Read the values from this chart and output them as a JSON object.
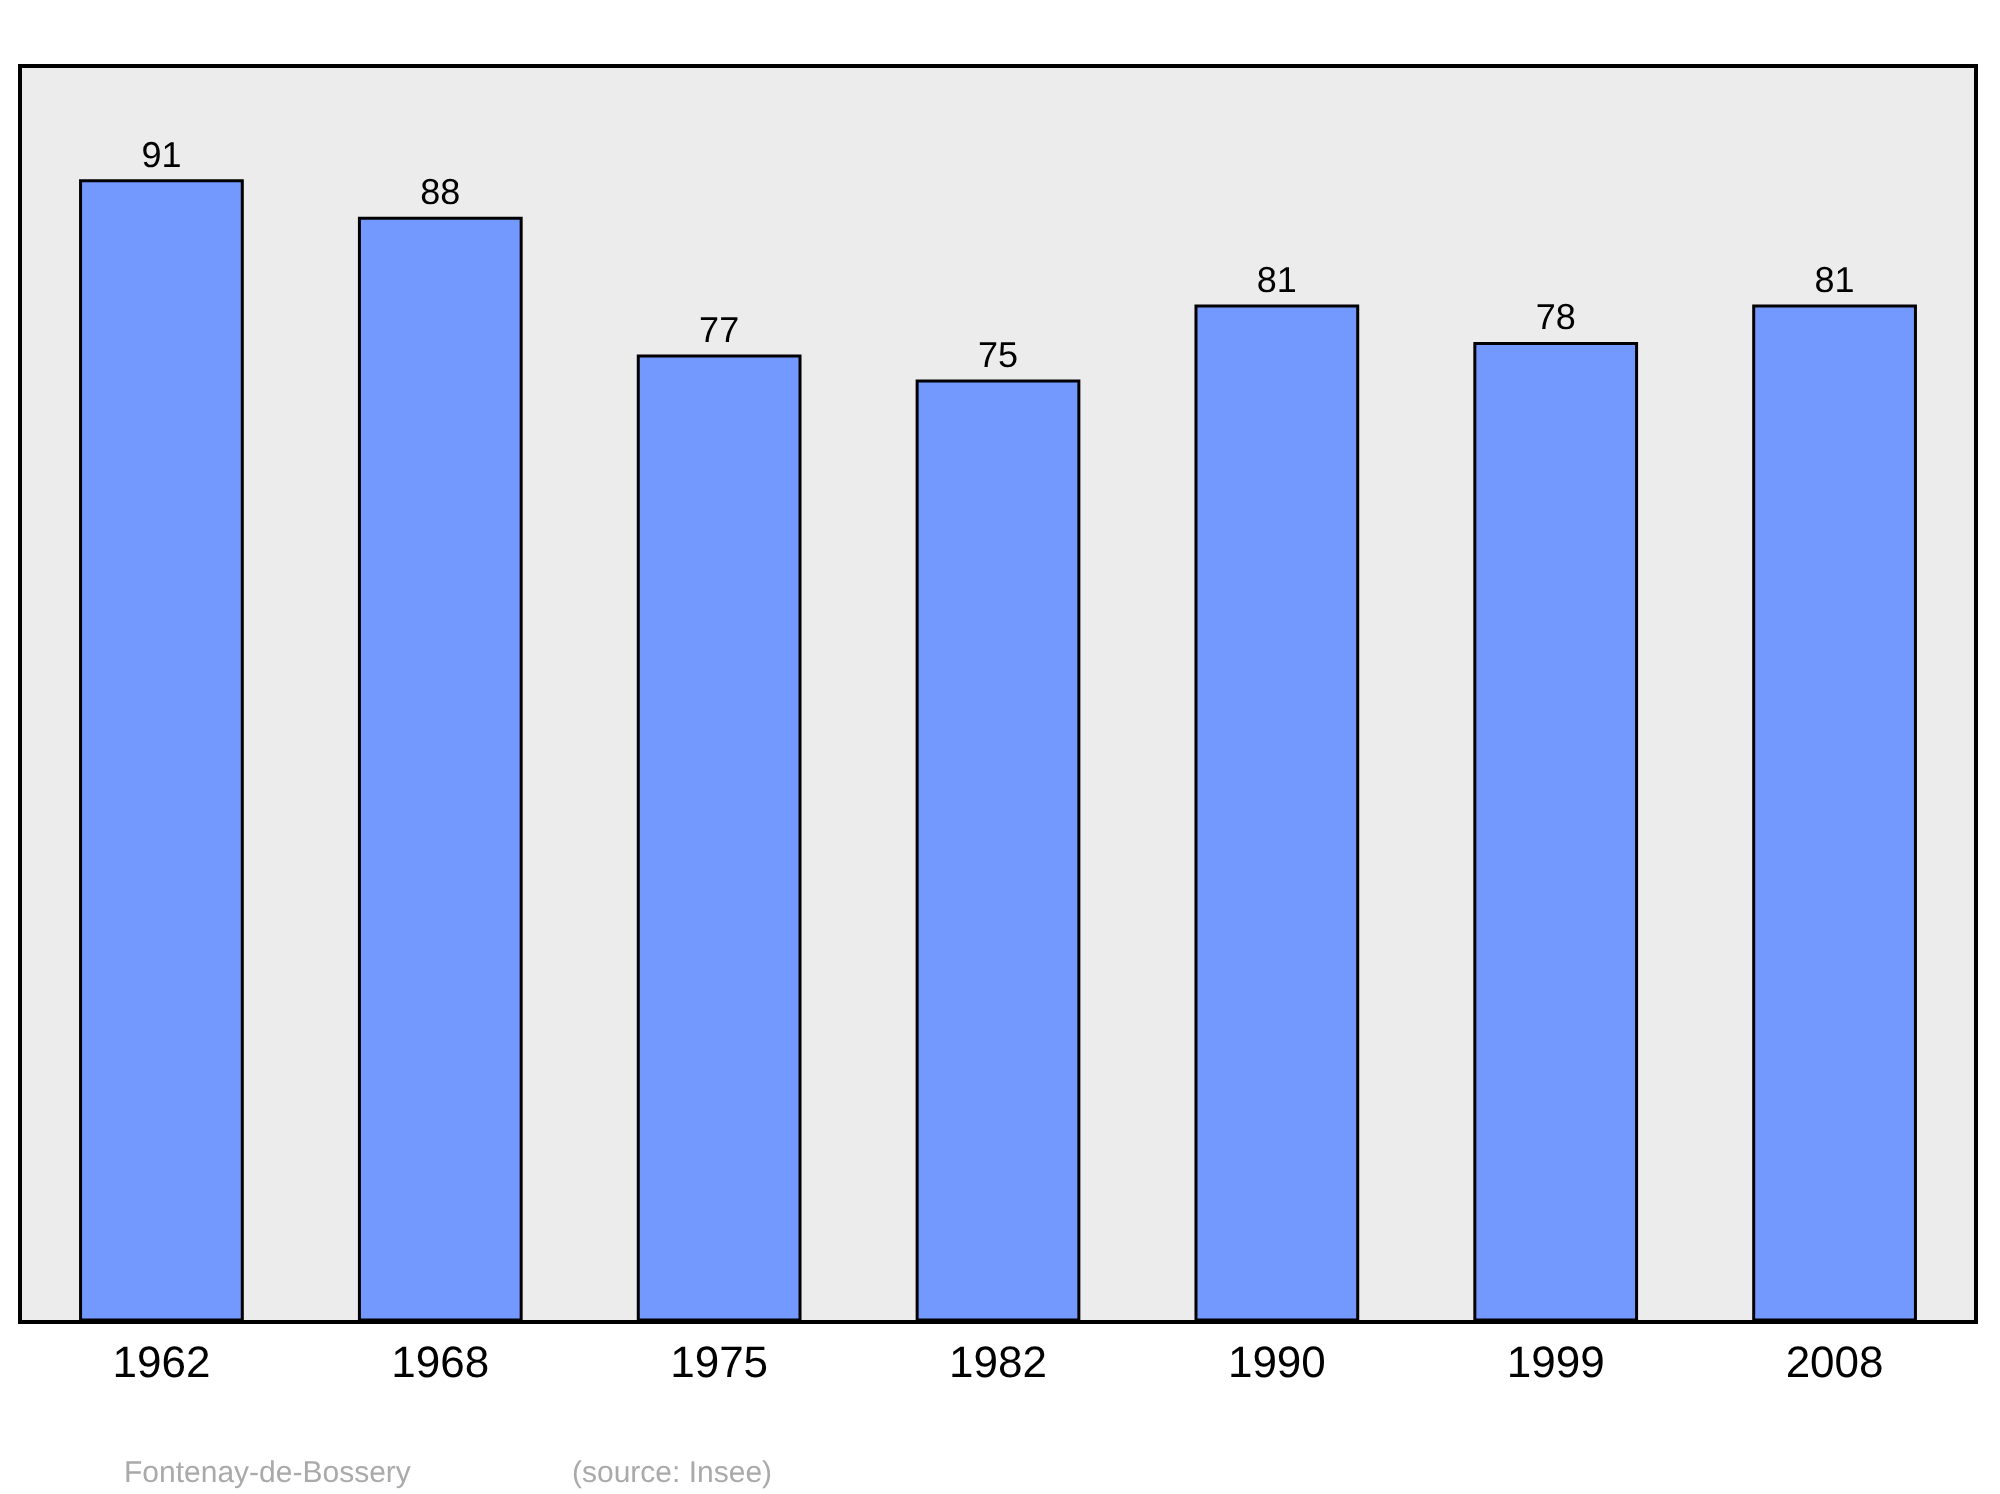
{
  "chart_data": {
    "type": "bar",
    "categories": [
      "1962",
      "1968",
      "1975",
      "1982",
      "1990",
      "1999",
      "2008"
    ],
    "values": [
      91,
      88,
      77,
      75,
      81,
      78,
      81
    ],
    "color": "#7399ff",
    "data_labels": true,
    "ylim": [
      0,
      100
    ],
    "tick_labels": "x",
    "annotations": [
      "Fontenay-de-Bossery",
      "(source: Insee)"
    ]
  }
}
